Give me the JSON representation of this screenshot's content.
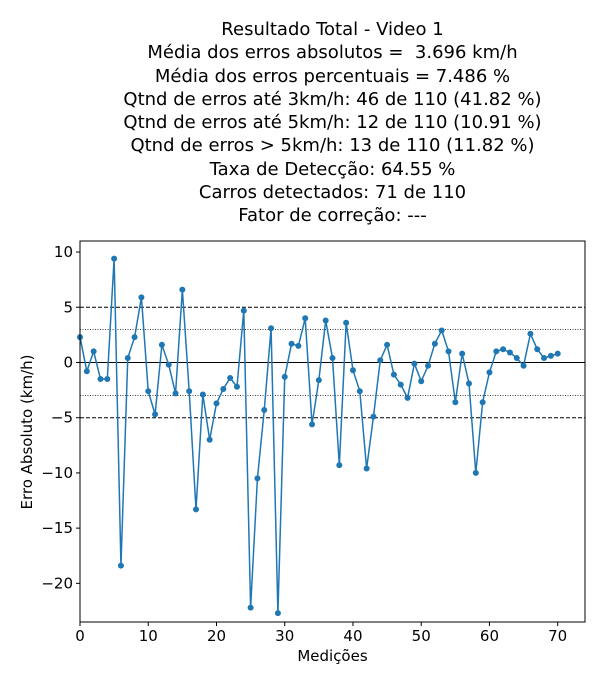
{
  "chart_data": {
    "type": "line",
    "title_lines": [
      "Resultado Total - Video 1",
      "",
      "Média dos erros absolutos =  3.696 km/h",
      "Média dos erros percentuais = 7.486 %",
      "Qtnd de erros até 3km/h: 46 de 110 (41.82 %)",
      "Qtnd de erros até 5km/h: 12 de 110 (10.91 %)",
      "Qtnd de erros > 5km/h: 13 de 110 (11.82 %)",
      "Taxa de Detecção: 64.55 %",
      "Carros detectados: 71 de 110",
      "Fator de correção: ---"
    ],
    "xlabel": "Medições",
    "ylabel": "Erro Absoluto (km/h)",
    "xlim": [
      0,
      74
    ],
    "ylim": [
      -23.5,
      11
    ],
    "xticks": [
      0,
      10,
      20,
      30,
      40,
      50,
      60,
      70
    ],
    "yticks": [
      -20,
      -15,
      -10,
      -5,
      0,
      5,
      10
    ],
    "ytick_labels": [
      "−20",
      "−15",
      "−10",
      "−5",
      "0",
      "5",
      "10"
    ],
    "reference_lines": [
      {
        "y": 5,
        "style": "dashed"
      },
      {
        "y": -5,
        "style": "dashed"
      },
      {
        "y": 3,
        "style": "dotted"
      },
      {
        "y": -3,
        "style": "dotted"
      },
      {
        "y": 0,
        "style": "solid"
      }
    ],
    "series": [
      {
        "color": "#1f77b4",
        "values": [
          2.3,
          -0.8,
          1.0,
          -1.5,
          -1.5,
          9.4,
          -18.4,
          0.4,
          2.3,
          5.9,
          -2.6,
          -4.7,
          1.6,
          -0.2,
          -2.8,
          6.6,
          -2.6,
          -13.3,
          -2.9,
          -7.0,
          -3.7,
          -2.4,
          -1.4,
          -2.2,
          4.7,
          -22.2,
          -10.5,
          -4.3,
          3.1,
          -22.7,
          -1.3,
          1.7,
          1.5,
          4.0,
          -5.6,
          -1.6,
          3.8,
          0.4,
          -9.3,
          3.6,
          -0.7,
          -2.6,
          -9.6,
          -4.9,
          0.2,
          1.6,
          -1.1,
          -2.0,
          -3.2,
          -0.1,
          -1.7,
          -0.3,
          1.7,
          2.9,
          1.0,
          -3.6,
          0.8,
          -1.9,
          -10.0,
          -3.6,
          -0.9,
          1.0,
          1.2,
          0.9,
          0.4,
          -0.3,
          2.6,
          1.2,
          0.4,
          0.6,
          0.8
        ]
      }
    ]
  }
}
